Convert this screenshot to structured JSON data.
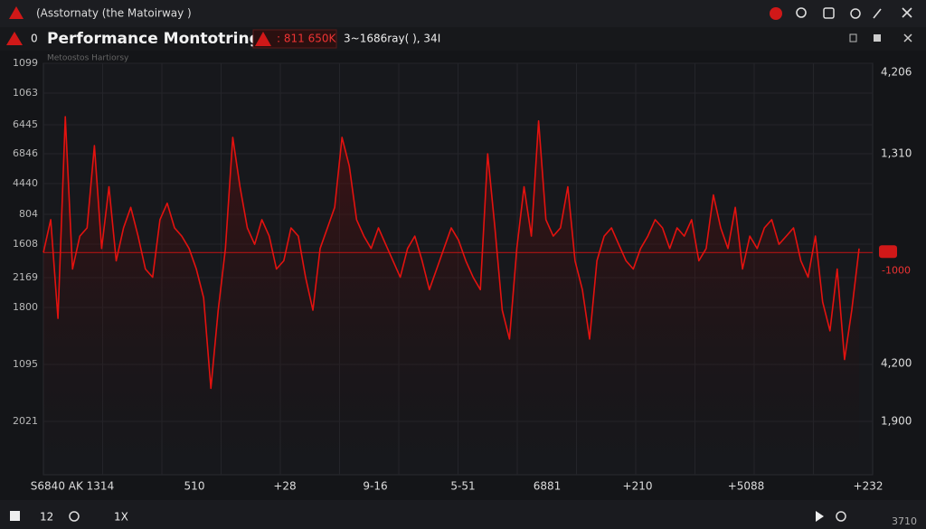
{
  "window": {
    "title": "(Asstornaty (the Matoirway )"
  },
  "toolbar": {
    "badge": "0",
    "title": "Performance Montotring",
    "status": ": 811 650K",
    "info": "3~1686ray( ), 34I"
  },
  "chart": {
    "type": "line",
    "subtitle": "Metoostos Hartiorsy",
    "color": "#e3120f",
    "ylim": [
      0,
      100
    ],
    "threshold": 54,
    "threshold_label": "-1000",
    "left_labels": [
      "1099",
      "1063",
      "6445",
      "6846",
      "4440",
      "804",
      "1608",
      "2169",
      "1800",
      "1095",
      "2021"
    ],
    "right_labels": [
      "4,206",
      "1,310",
      "4,200",
      "1,900"
    ],
    "x_labels": [
      "S6840 AK 1314",
      "510",
      "+28",
      "9-16",
      "5-51",
      "6881",
      "+210",
      "+5088",
      "+232"
    ],
    "values": [
      54,
      62,
      38,
      87,
      50,
      58,
      60,
      80,
      55,
      70,
      52,
      60,
      65,
      58,
      50,
      48,
      62,
      66,
      60,
      58,
      55,
      50,
      43,
      21,
      40,
      55,
      82,
      70,
      60,
      56,
      62,
      58,
      50,
      52,
      60,
      58,
      48,
      40,
      55,
      60,
      65,
      82,
      75,
      62,
      58,
      55,
      60,
      56,
      52,
      48,
      55,
      58,
      52,
      45,
      50,
      55,
      60,
      57,
      52,
      48,
      45,
      78,
      60,
      40,
      33,
      55,
      70,
      58,
      86,
      62,
      58,
      60,
      70,
      52,
      45,
      33,
      52,
      58,
      60,
      56,
      52,
      50,
      55,
      58,
      62,
      60,
      55,
      60,
      58,
      62,
      52,
      55,
      68,
      60,
      55,
      65,
      50,
      58,
      55,
      60,
      62,
      56,
      58,
      60,
      52,
      48,
      58,
      42,
      35,
      50,
      28,
      40,
      55
    ]
  },
  "statusbar": {
    "left": "12",
    "zoom": "1X",
    "right": "3710"
  }
}
